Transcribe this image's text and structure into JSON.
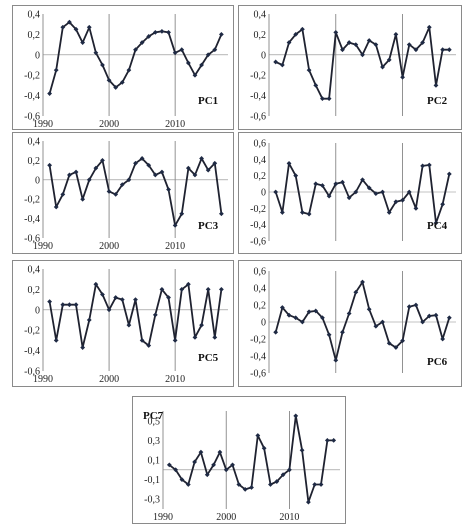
{
  "chart_data": [
    {
      "type": "line",
      "title": "PC1",
      "ylim": [
        -0.6,
        0.4
      ],
      "yticks": [
        "0,4",
        "0,2",
        "0",
        "-0,2",
        "-0,4",
        "-0,6"
      ],
      "yticks_values": [
        0.4,
        0.2,
        0,
        -0.2,
        -0.4,
        -0.6
      ],
      "xlim": [
        1990,
        2018
      ],
      "xticks": [
        "1990",
        "2000",
        "2010"
      ],
      "xticks_values": [
        1990,
        2000,
        2010
      ],
      "grid": "vertical",
      "label_position": "bottom-right",
      "series": [
        {
          "x": [
            1991,
            1992,
            1993,
            1994,
            1995,
            1996,
            1997,
            1998,
            1999,
            2000,
            2001,
            2002,
            2003,
            2004,
            2005,
            2006,
            2007,
            2008,
            2009,
            2010,
            2011,
            2012,
            2013,
            2014,
            2015,
            2016,
            2017
          ],
          "values": [
            -0.38,
            -0.15,
            0.27,
            0.32,
            0.25,
            0.12,
            0.27,
            0.02,
            -0.1,
            -0.25,
            -0.32,
            -0.27,
            -0.15,
            0.05,
            0.12,
            0.18,
            0.22,
            0.23,
            0.22,
            0.02,
            0.05,
            -0.08,
            -0.2,
            -0.1,
            0.0,
            0.05,
            0.2
          ]
        }
      ]
    },
    {
      "type": "line",
      "title": "PC2",
      "ylim": [
        -0.6,
        0.4
      ],
      "yticks": [
        "0,4",
        "0,2",
        "0",
        "-0,2",
        "-0,4",
        "-0,6"
      ],
      "yticks_values": [
        0.4,
        0.2,
        0,
        -0.2,
        -0.4,
        -0.6
      ],
      "xlim": [
        1990,
        2018
      ],
      "xticks": [],
      "xticks_values": [
        1990,
        2000,
        2010
      ],
      "grid": "vertical",
      "label_position": "bottom-right",
      "series": [
        {
          "x": [
            1991,
            1992,
            1993,
            1994,
            1995,
            1996,
            1997,
            1998,
            1999,
            2000,
            2001,
            2002,
            2003,
            2004,
            2005,
            2006,
            2007,
            2008,
            2009,
            2010,
            2011,
            2012,
            2013,
            2014,
            2015,
            2016,
            2017
          ],
          "values": [
            -0.07,
            -0.1,
            0.12,
            0.2,
            0.25,
            -0.15,
            -0.3,
            -0.43,
            -0.43,
            0.22,
            0.05,
            0.12,
            0.1,
            0.0,
            0.14,
            0.1,
            -0.12,
            -0.05,
            0.2,
            -0.22,
            0.1,
            0.05,
            0.12,
            0.27,
            -0.3,
            0.05,
            0.05
          ]
        }
      ]
    },
    {
      "type": "line",
      "title": "PC3",
      "ylim": [
        -0.6,
        0.4
      ],
      "yticks": [
        "0,4",
        "0,2",
        "0",
        "-0,2",
        "-0,4",
        "-0,6"
      ],
      "yticks_values": [
        0.4,
        0.2,
        0,
        -0.2,
        -0.4,
        -0.6
      ],
      "xlim": [
        1990,
        2018
      ],
      "xticks": [
        "1990",
        "2000",
        "2010"
      ],
      "xticks_values": [
        1990,
        2000,
        2010
      ],
      "grid": "vertical",
      "label_position": "bottom-right",
      "series": [
        {
          "x": [
            1991,
            1992,
            1993,
            1994,
            1995,
            1996,
            1997,
            1998,
            1999,
            2000,
            2001,
            2002,
            2003,
            2004,
            2005,
            2006,
            2007,
            2008,
            2009,
            2010,
            2011,
            2012,
            2013,
            2014,
            2015,
            2016,
            2017
          ],
          "values": [
            0.15,
            -0.28,
            -0.15,
            0.05,
            0.08,
            -0.2,
            0.0,
            0.12,
            0.2,
            -0.12,
            -0.15,
            -0.05,
            0.0,
            0.17,
            0.22,
            0.15,
            0.05,
            0.08,
            -0.1,
            -0.47,
            -0.35,
            0.12,
            0.05,
            0.22,
            0.1,
            0.17,
            -0.35
          ]
        }
      ]
    },
    {
      "type": "line",
      "title": "PC4",
      "ylim": [
        -0.6,
        0.6
      ],
      "yticks": [
        "0,6",
        "0,4",
        "0,2",
        "0",
        "-0,2",
        "-0,4",
        "-0,6"
      ],
      "yticks_values": [
        0.6,
        0.4,
        0.2,
        0,
        -0.2,
        -0.4,
        -0.6
      ],
      "xlim": [
        1990,
        2018
      ],
      "xticks": [],
      "xticks_values": [
        1990,
        2000,
        2010
      ],
      "grid": "vertical",
      "label_position": "bottom-right",
      "series": [
        {
          "x": [
            1991,
            1992,
            1993,
            1994,
            1995,
            1996,
            1997,
            1998,
            1999,
            2000,
            2001,
            2002,
            2003,
            2004,
            2005,
            2006,
            2007,
            2008,
            2009,
            2010,
            2011,
            2012,
            2013,
            2014,
            2015,
            2016,
            2017
          ],
          "values": [
            0.0,
            -0.25,
            0.35,
            0.2,
            -0.25,
            -0.27,
            0.1,
            0.08,
            -0.05,
            0.1,
            0.12,
            -0.07,
            0.0,
            0.15,
            0.05,
            -0.02,
            0.0,
            -0.25,
            -0.12,
            -0.1,
            0.0,
            -0.2,
            0.32,
            0.33,
            -0.38,
            -0.15,
            0.22
          ]
        }
      ]
    },
    {
      "type": "line",
      "title": "PC5",
      "ylim": [
        -0.6,
        0.4
      ],
      "yticks": [
        "0,4",
        "0,2",
        "0",
        "-0,2",
        "-0,4",
        "-0,6"
      ],
      "yticks_values": [
        0.4,
        0.2,
        0,
        -0.2,
        -0.4,
        -0.6
      ],
      "xlim": [
        1990,
        2018
      ],
      "xticks": [
        "1990",
        "2000",
        "2010"
      ],
      "xticks_values": [
        1990,
        2000,
        2010
      ],
      "grid": "vertical",
      "label_position": "bottom-right",
      "series": [
        {
          "x": [
            1991,
            1992,
            1993,
            1994,
            1995,
            1996,
            1997,
            1998,
            1999,
            2000,
            2001,
            2002,
            2003,
            2004,
            2005,
            2006,
            2007,
            2008,
            2009,
            2010,
            2011,
            2012,
            2013,
            2014,
            2015,
            2016,
            2017
          ],
          "values": [
            0.08,
            -0.3,
            0.05,
            0.05,
            0.05,
            -0.37,
            -0.1,
            0.25,
            0.15,
            0.0,
            0.12,
            0.1,
            -0.15,
            0.1,
            -0.3,
            -0.35,
            -0.05,
            0.2,
            0.12,
            -0.3,
            0.2,
            0.25,
            -0.27,
            -0.15,
            0.2,
            -0.27,
            0.2
          ]
        }
      ]
    },
    {
      "type": "line",
      "title": "PC6",
      "ylim": [
        -0.6,
        0.6
      ],
      "yticks": [
        "0,6",
        "0,4",
        "0,2",
        "0",
        "-0,2",
        "-0,4",
        "-0,6"
      ],
      "yticks_values": [
        0.6,
        0.4,
        0.2,
        0,
        -0.2,
        -0.4,
        -0.6
      ],
      "xlim": [
        1990,
        2018
      ],
      "xticks": [],
      "xticks_values": [
        1990,
        2000,
        2010
      ],
      "grid": "vertical",
      "label_position": "bottom-right",
      "series": [
        {
          "x": [
            1991,
            1992,
            1993,
            1994,
            1995,
            1996,
            1997,
            1998,
            1999,
            2000,
            2001,
            2002,
            2003,
            2004,
            2005,
            2006,
            2007,
            2008,
            2009,
            2010,
            2011,
            2012,
            2013,
            2014,
            2015,
            2016,
            2017
          ],
          "values": [
            -0.12,
            0.17,
            0.08,
            0.05,
            0.0,
            0.12,
            0.13,
            0.05,
            -0.15,
            -0.45,
            -0.12,
            0.1,
            0.35,
            0.47,
            0.15,
            -0.05,
            0.0,
            -0.25,
            -0.3,
            -0.22,
            0.18,
            0.2,
            0.0,
            0.07,
            0.08,
            -0.2,
            0.05
          ]
        }
      ]
    },
    {
      "type": "line",
      "title": "PC7",
      "ylim": [
        -0.4,
        0.6
      ],
      "yticks": [
        "0,5",
        "0,3",
        "0,1",
        "-0,1",
        "-0,3"
      ],
      "yticks_values": [
        0.5,
        0.3,
        0.1,
        -0.1,
        -0.3
      ],
      "xlim": [
        1990,
        2018
      ],
      "xticks": [
        "1990",
        "2000",
        "2010"
      ],
      "xticks_values": [
        1990,
        2000,
        2010
      ],
      "grid": "vertical",
      "label_position": "top-left",
      "series": [
        {
          "x": [
            1991,
            1992,
            1993,
            1994,
            1995,
            1996,
            1997,
            1998,
            1999,
            2000,
            2001,
            2002,
            2003,
            2004,
            2005,
            2006,
            2007,
            2008,
            2009,
            2010,
            2011,
            2012,
            2013,
            2014,
            2015,
            2016,
            2017
          ],
          "values": [
            0.05,
            0.0,
            -0.1,
            -0.15,
            0.08,
            0.18,
            -0.05,
            0.05,
            0.18,
            0.0,
            0.05,
            -0.15,
            -0.2,
            -0.18,
            0.35,
            0.22,
            -0.15,
            -0.12,
            -0.05,
            0.0,
            0.55,
            0.2,
            -0.33,
            -0.15,
            -0.15,
            0.3,
            0.3
          ]
        }
      ]
    }
  ]
}
